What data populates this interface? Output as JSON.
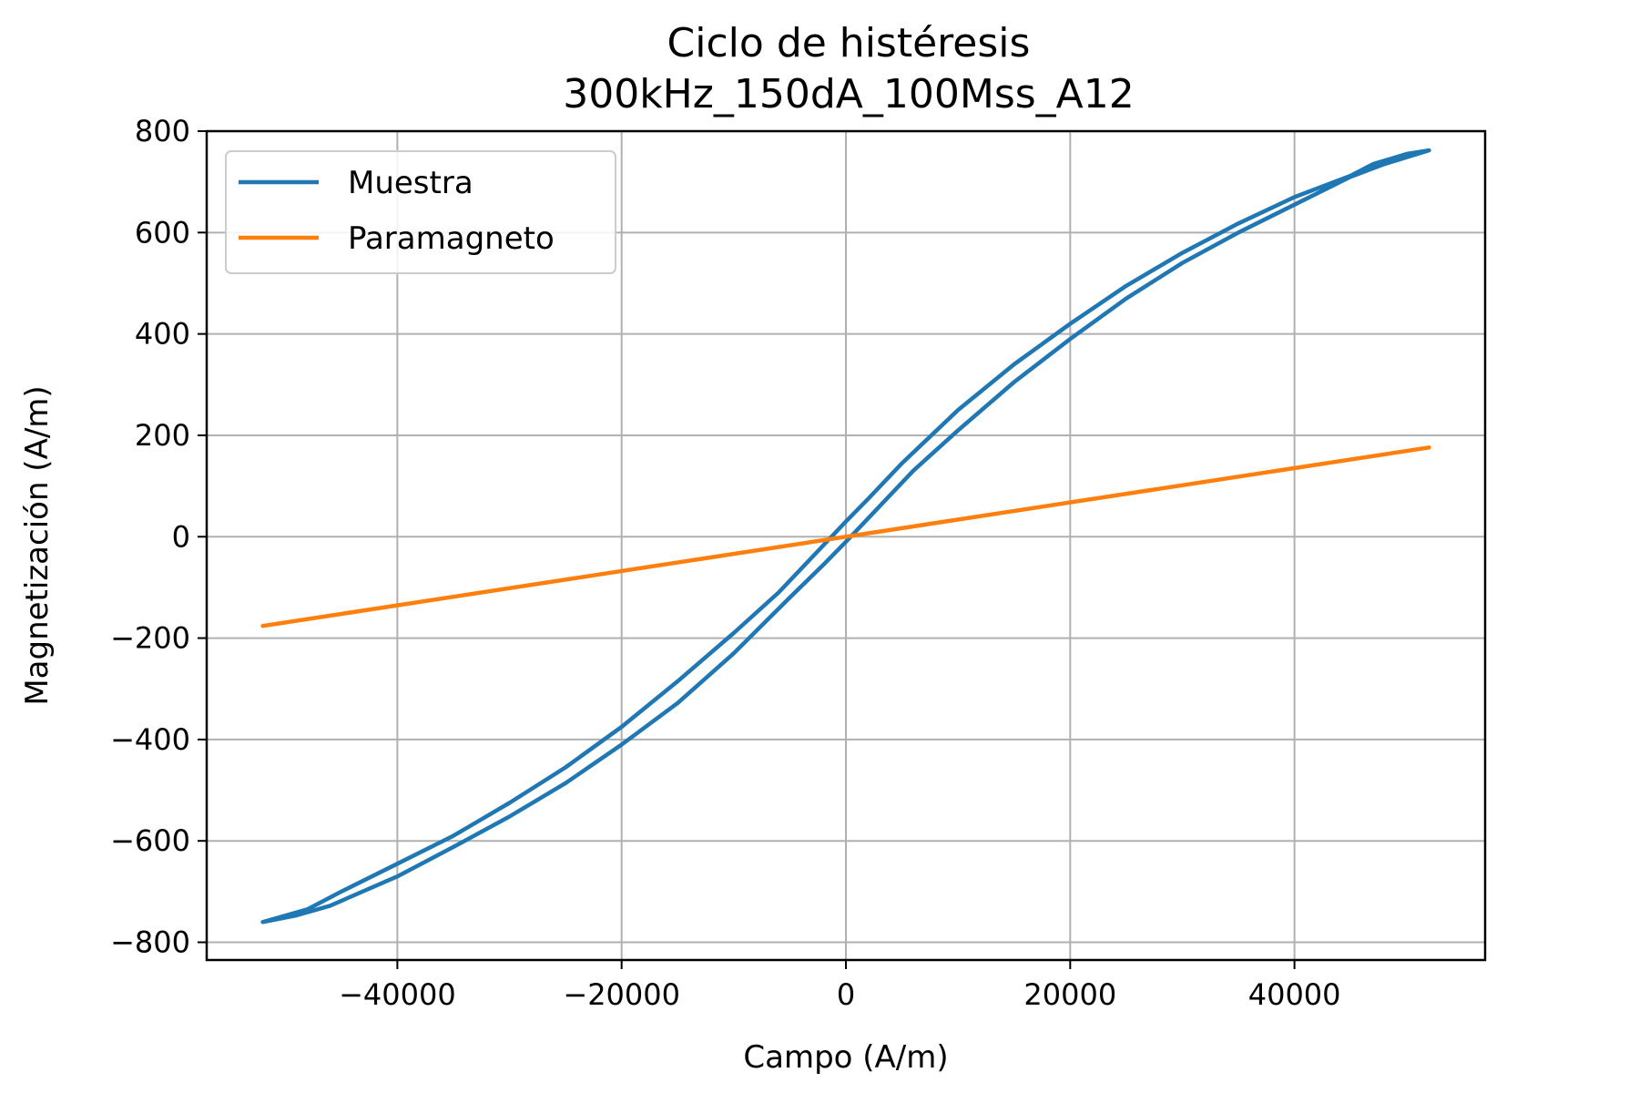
{
  "chart_data": {
    "type": "line",
    "title": "Ciclo de histéresis",
    "subtitle": "300kHz_150dA_100Mss_A12",
    "xlabel": "Campo (A/m)",
    "ylabel": "Magnetización (A/m)",
    "xlim": [
      -57000,
      57000
    ],
    "ylim": [
      -835,
      800
    ],
    "xticks": [
      -40000,
      -20000,
      0,
      20000,
      40000
    ],
    "xtick_labels": [
      "−40000",
      "−20000",
      "0",
      "20000",
      "40000"
    ],
    "yticks": [
      -800,
      -600,
      -400,
      -200,
      0,
      200,
      400,
      600,
      800
    ],
    "ytick_labels": [
      "−800",
      "−600",
      "−400",
      "−200",
      "0",
      "200",
      "400",
      "600",
      "800"
    ],
    "grid": true,
    "legend_position": "upper-left",
    "series": [
      {
        "name": "Muestra",
        "color": "#1f77b4",
        "x": [
          -52000,
          -49000,
          -46000,
          -40000,
          -35000,
          -30000,
          -25000,
          -20000,
          -15000,
          -10000,
          -5000,
          -2000,
          0,
          3000,
          6000,
          10000,
          15000,
          20000,
          25000,
          30000,
          35000,
          40000,
          45000,
          48000,
          52000,
          50000,
          47000,
          45000,
          40000,
          35000,
          30000,
          25000,
          20000,
          15000,
          10000,
          5000,
          2000,
          0,
          -3000,
          -6000,
          -10000,
          -15000,
          -20000,
          -25000,
          -30000,
          -35000,
          -40000,
          -45000,
          -48000,
          -52000
        ],
        "y": [
          -760,
          -747,
          -728,
          -670,
          -612,
          -552,
          -486,
          -410,
          -328,
          -230,
          -120,
          -55,
          -10,
          60,
          130,
          210,
          305,
          390,
          470,
          540,
          600,
          655,
          710,
          735,
          762,
          755,
          735,
          712,
          670,
          618,
          560,
          495,
          420,
          340,
          250,
          145,
          75,
          30,
          -40,
          -110,
          -190,
          -285,
          -375,
          -455,
          -525,
          -590,
          -645,
          -700,
          -735,
          -760
        ]
      },
      {
        "name": "Paramagneto",
        "color": "#ff7f0e",
        "x": [
          -52000,
          52000
        ],
        "y": [
          -176,
          176
        ]
      }
    ]
  }
}
